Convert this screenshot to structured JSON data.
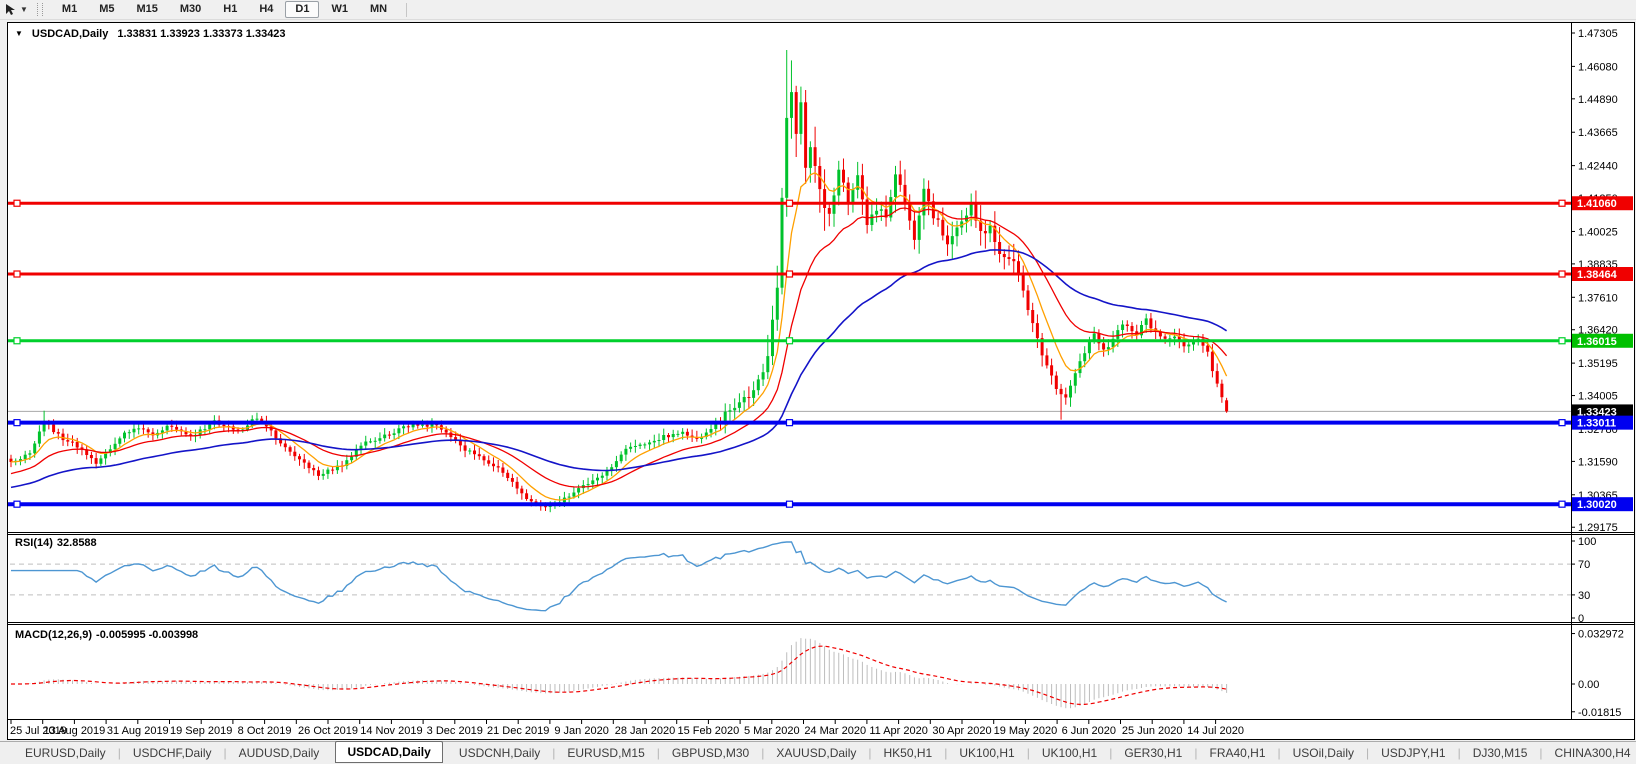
{
  "toolbar": {
    "cursor_tool": "line-studies-cursor",
    "timeframes": [
      "M1",
      "M5",
      "M15",
      "M30",
      "H1",
      "H4",
      "D1",
      "W1",
      "MN"
    ],
    "active_timeframe": "D1"
  },
  "chart": {
    "title": {
      "symbol": "USDCAD,Daily",
      "ohlc": "1.33831 1.33923 1.33373 1.33423"
    },
    "price_axis_ticks": [
      "1.47305",
      "1.46080",
      "1.44890",
      "1.43665",
      "1.42440",
      "1.41250",
      "1.40025",
      "1.38835",
      "1.37610",
      "1.36420",
      "1.35195",
      "1.34005",
      "1.32780",
      "1.31590",
      "1.30365",
      "1.29175"
    ],
    "axis_labels": [
      {
        "text": "1.41060",
        "price": 1.4106,
        "bg": "#F00000"
      },
      {
        "text": "1.38464",
        "price": 1.38464,
        "bg": "#F00000"
      },
      {
        "text": "1.36015",
        "price": 1.36015,
        "bg": "#00C000"
      },
      {
        "text": "1.33423",
        "price": 1.33423,
        "bg": "#000000"
      },
      {
        "text": "1.33011",
        "price": 1.33011,
        "bg": "#0000F0"
      },
      {
        "text": "1.30020",
        "price": 1.3002,
        "bg": "#0000F0"
      }
    ],
    "date_labels": [
      "25 Jul 2019",
      "13 Aug 2019",
      "31 Aug 2019",
      "19 Sep 2019",
      "8 Oct 2019",
      "26 Oct 2019",
      "14 Nov 2019",
      "3 Dec 2019",
      "21 Dec 2019",
      "9 Jan 2020",
      "28 Jan 2020",
      "15 Feb 2020",
      "5 Mar 2020",
      "24 Mar 2020",
      "11 Apr 2020",
      "30 Apr 2020",
      "19 May 2020",
      "6 Jun 2020",
      "25 Jun 2020",
      "14 Jul 2020"
    ]
  },
  "rsi": {
    "label": "RSI(14)",
    "value": "32.8588",
    "levels": [
      70,
      30
    ],
    "scale": [
      {
        "text": "100",
        "v": 100
      },
      {
        "text": "70",
        "v": 70
      },
      {
        "text": "30",
        "v": 30
      },
      {
        "text": "0",
        "v": 0
      }
    ]
  },
  "macd": {
    "label": "MACD(12,26,9)",
    "values": "-0.005995 -0.003998",
    "scale": [
      {
        "text": "0.032972",
        "v": 0.032972
      },
      {
        "text": "0.00",
        "v": 0
      },
      {
        "text": "-0.01815",
        "v": -0.01815
      }
    ]
  },
  "tabs": {
    "items": [
      {
        "label": "EURUSD,Daily",
        "active": false
      },
      {
        "label": "USDCHF,Daily",
        "active": false
      },
      {
        "label": "AUDUSD,Daily",
        "active": false
      },
      {
        "label": "USDCAD,Daily",
        "active": true
      },
      {
        "label": "USDCNH,Daily",
        "active": false
      },
      {
        "label": "EURUSD,M15",
        "active": false
      },
      {
        "label": "GBPUSD,M30",
        "active": false
      },
      {
        "label": "XAUUSD,Daily",
        "active": false
      },
      {
        "label": "HK50,H1",
        "active": false
      },
      {
        "label": "UK100,H1",
        "active": false
      },
      {
        "label": "UK100,H1",
        "active": false
      },
      {
        "label": "GER30,H1",
        "active": false
      },
      {
        "label": "FRA40,H1",
        "active": false
      },
      {
        "label": "USOil,Daily",
        "active": false
      },
      {
        "label": "USDJPY,H1",
        "active": false
      },
      {
        "label": "DJ30,M15",
        "active": false
      },
      {
        "label": "CHINA300,H4",
        "active": false
      }
    ],
    "scroll_left": "◄",
    "scroll_right": "►"
  },
  "colors": {
    "up": "#00C22C",
    "down": "#F00000",
    "current_price_line": "#A8A8A8",
    "rsi_line": "#4D96D2",
    "rsi_levels": "#BFBFBF",
    "macd_hist": "#BDBDBD",
    "macd_signal": "#F00000",
    "axis_text": "#000000",
    "label_text": "#FFFFFF"
  },
  "chart_data": {
    "type": "candlestick",
    "symbol": "USDCAD",
    "timeframe": "Daily",
    "title": "USDCAD,Daily",
    "y_axis_range": [
      1.29175,
      1.47305
    ],
    "x_axis_range": [
      "25 Jul 2019",
      "22 Jul 2020"
    ],
    "bars": 258,
    "ohlc_last": {
      "open": 1.33831,
      "high": 1.33923,
      "low": 1.33373,
      "close": 1.33423
    },
    "current_price": 1.33423,
    "price_anchors": [
      [
        0,
        1.3155
      ],
      [
        4,
        1.319
      ],
      [
        7,
        1.3305
      ],
      [
        10,
        1.3255
      ],
      [
        14,
        1.3215
      ],
      [
        18,
        1.315
      ],
      [
        22,
        1.323
      ],
      [
        26,
        1.3285
      ],
      [
        30,
        1.326
      ],
      [
        34,
        1.329
      ],
      [
        38,
        1.3245
      ],
      [
        43,
        1.3305
      ],
      [
        48,
        1.327
      ],
      [
        52,
        1.332
      ],
      [
        56,
        1.325
      ],
      [
        60,
        1.3175
      ],
      [
        65,
        1.3105
      ],
      [
        70,
        1.3145
      ],
      [
        75,
        1.323
      ],
      [
        80,
        1.3255
      ],
      [
        85,
        1.33
      ],
      [
        90,
        1.3285
      ],
      [
        95,
        1.3215
      ],
      [
        100,
        1.3165
      ],
      [
        104,
        1.312
      ],
      [
        108,
        1.3035
      ],
      [
        112,
        1.2995
      ],
      [
        116,
        1.3005
      ],
      [
        120,
        1.306
      ],
      [
        125,
        1.3105
      ],
      [
        130,
        1.32
      ],
      [
        136,
        1.324
      ],
      [
        141,
        1.3265
      ],
      [
        146,
        1.3245
      ],
      [
        150,
        1.331
      ],
      [
        154,
        1.338
      ],
      [
        157,
        1.342
      ],
      [
        159,
        1.348
      ],
      [
        161,
        1.365
      ],
      [
        162,
        1.378
      ],
      [
        163,
        1.41
      ],
      [
        164,
        1.444
      ],
      [
        165,
        1.45
      ],
      [
        166,
        1.437
      ],
      [
        167,
        1.446
      ],
      [
        168,
        1.424
      ],
      [
        169,
        1.431
      ],
      [
        171,
        1.416
      ],
      [
        173,
        1.406
      ],
      [
        175,
        1.423
      ],
      [
        177,
        1.411
      ],
      [
        179,
        1.419
      ],
      [
        181,
        1.403
      ],
      [
        183,
        1.409
      ],
      [
        185,
        1.406
      ],
      [
        187,
        1.421
      ],
      [
        189,
        1.411
      ],
      [
        191,
        1.399
      ],
      [
        193,
        1.414
      ],
      [
        195,
        1.406
      ],
      [
        198,
        1.396
      ],
      [
        201,
        1.404
      ],
      [
        203,
        1.409
      ],
      [
        205,
        1.399
      ],
      [
        207,
        1.401
      ],
      [
        209,
        1.393
      ],
      [
        211,
        1.391
      ],
      [
        213,
        1.386
      ],
      [
        215,
        1.371
      ],
      [
        217,
        1.36
      ],
      [
        219,
        1.351
      ],
      [
        221,
        1.343
      ],
      [
        223,
        1.339
      ],
      [
        225,
        1.348
      ],
      [
        227,
        1.356
      ],
      [
        229,
        1.362
      ],
      [
        231,
        1.356
      ],
      [
        233,
        1.361
      ],
      [
        235,
        1.3655
      ],
      [
        238,
        1.363
      ],
      [
        240,
        1.368
      ],
      [
        242,
        1.3625
      ],
      [
        244,
        1.36
      ],
      [
        246,
        1.3615
      ],
      [
        248,
        1.3585
      ],
      [
        251,
        1.3605
      ],
      [
        253,
        1.3555
      ],
      [
        254,
        1.3495
      ],
      [
        255,
        1.3435
      ],
      [
        256,
        1.3395
      ],
      [
        257,
        1.33423
      ]
    ],
    "wick_overrides": [
      {
        "i": 7,
        "high": 1.3345
      },
      {
        "i": 164,
        "high": 1.4668
      },
      {
        "i": 165,
        "high": 1.463
      },
      {
        "i": 222,
        "low": 1.3312
      }
    ],
    "volatility_zones": [
      {
        "from": 150,
        "to": 158,
        "amp": 0.003
      },
      {
        "from": 159,
        "to": 172,
        "amp": 0.0058
      },
      {
        "from": 173,
        "to": 212,
        "amp": 0.0038
      },
      {
        "from": 213,
        "to": 225,
        "amp": 0.0028
      },
      {
        "from": 226,
        "to": 256,
        "amp": 0.002
      }
    ],
    "volatility_default": 0.0016,
    "horizontal_lines": [
      {
        "price": 1.4106,
        "color": "#F00000",
        "width": 3
      },
      {
        "price": 1.38464,
        "color": "#F00000",
        "width": 3
      },
      {
        "price": 1.36015,
        "color": "#00D02C",
        "width": 3
      },
      {
        "price": 1.33011,
        "color": "#0000F0",
        "width": 4
      },
      {
        "price": 1.3002,
        "color": "#0000F0",
        "width": 4
      }
    ],
    "moving_averages": [
      {
        "period": 8,
        "color": "#FFA000",
        "width": 1.3,
        "seed": null
      },
      {
        "period": 21,
        "color": "#F00000",
        "width": 1.3,
        "seed": 1.311
      },
      {
        "period": 55,
        "color": "#1414C8",
        "width": 1.6,
        "seed": 1.306
      }
    ],
    "rsi": {
      "period": 14,
      "last": 32.8588,
      "levels": [
        70,
        30
      ],
      "range": [
        0,
        100
      ]
    },
    "macd": {
      "fast": 12,
      "slow": 26,
      "signal": 9,
      "last_macd": -0.005995,
      "last_signal": -0.003998,
      "scale_max": 0.032972,
      "scale_min": -0.01815
    }
  }
}
